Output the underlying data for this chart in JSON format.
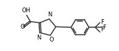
{
  "bg_color": "#ffffff",
  "line_color": "#3a3a3a",
  "text_color": "#000000",
  "line_width": 1.1,
  "font_size": 6.0,
  "fig_width": 1.73,
  "fig_height": 0.75,
  "dpi": 100,
  "xlim": [
    0.0,
    9.5
  ],
  "ylim": [
    0.8,
    4.0
  ]
}
